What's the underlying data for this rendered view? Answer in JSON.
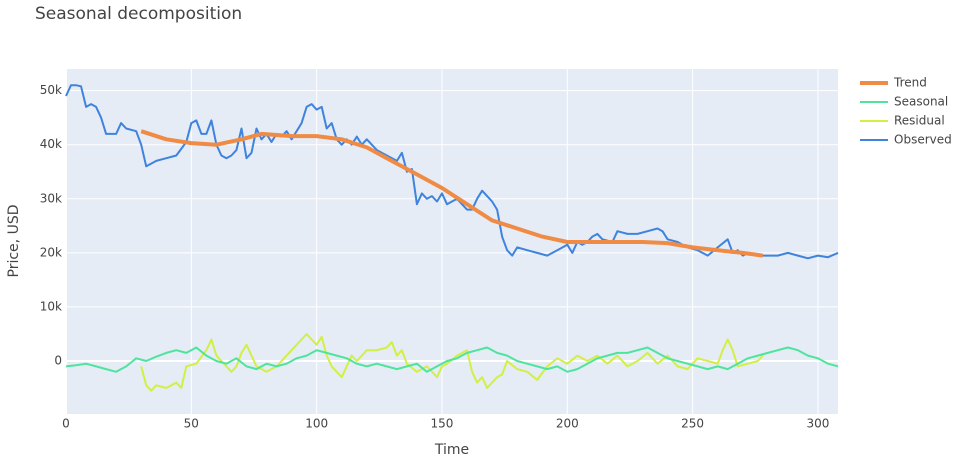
{
  "chart_data": {
    "type": "line",
    "title": "Seasonal decomposition",
    "x_label": "Time",
    "y_label": "Price, USD",
    "xlim": [
      0,
      308
    ],
    "ylim": [
      -9800,
      54000
    ],
    "xticks": [
      0,
      50,
      100,
      150,
      200,
      250,
      300
    ],
    "yticks": [
      {
        "value": 0,
        "label": "0"
      },
      {
        "value": 10000,
        "label": "10k"
      },
      {
        "value": 20000,
        "label": "20k"
      },
      {
        "value": 30000,
        "label": "30k"
      },
      {
        "value": 40000,
        "label": "40k"
      },
      {
        "value": 50000,
        "label": "50k"
      }
    ],
    "grid": true,
    "legend": "right",
    "series": [
      {
        "name": "Trend",
        "color": "#ef8b44",
        "x": [
          30,
          40,
          50,
          60,
          70,
          78,
          90,
          100,
          110,
          120,
          130,
          140,
          150,
          160,
          170,
          180,
          190,
          200,
          210,
          220,
          230,
          240,
          250,
          260,
          270,
          278
        ],
        "values": [
          42500,
          41000,
          40300,
          40000,
          41000,
          42000,
          41600,
          41600,
          41000,
          39500,
          37000,
          34500,
          32000,
          29000,
          26000,
          24500,
          23000,
          22000,
          22000,
          22000,
          22000,
          21800,
          21000,
          20500,
          20000,
          19500
        ]
      },
      {
        "name": "Seasonal",
        "color": "#4fe49c",
        "x": [
          0,
          4,
          8,
          12,
          16,
          20,
          24,
          28,
          32,
          36,
          40,
          44,
          48,
          52,
          56,
          60,
          64,
          68,
          72,
          76,
          80,
          84,
          88,
          92,
          96,
          100,
          104,
          108,
          112,
          116,
          120,
          124,
          128,
          132,
          136,
          140,
          144,
          148,
          152,
          156,
          160,
          164,
          168,
          172,
          176,
          180,
          184,
          188,
          192,
          196,
          200,
          204,
          208,
          212,
          216,
          220,
          224,
          228,
          232,
          236,
          240,
          244,
          248,
          252,
          256,
          260,
          264,
          268,
          272,
          276,
          280,
          284,
          288,
          292,
          296,
          300,
          304,
          308
        ],
        "values": [
          -1000,
          -800,
          -500,
          -1000,
          -1500,
          -2000,
          -1000,
          500,
          0,
          800,
          1500,
          2000,
          1500,
          2500,
          1000,
          0,
          -500,
          500,
          -1000,
          -1500,
          -500,
          -1000,
          -500,
          500,
          1000,
          2000,
          1500,
          1000,
          500,
          -500,
          -1000,
          -500,
          -1000,
          -1500,
          -1000,
          -500,
          -2000,
          -1000,
          0,
          500,
          1500,
          2000,
          2500,
          1500,
          1000,
          0,
          -500,
          -1000,
          -1500,
          -1000,
          -2000,
          -1500,
          -500,
          500,
          1000,
          1500,
          1500,
          2000,
          2500,
          1500,
          500,
          0,
          -500,
          -1000,
          -1500,
          -1000,
          -1500,
          -500,
          500,
          1000,
          1500,
          2000,
          2500,
          2000,
          1000,
          500,
          -500,
          -1000
        ]
      },
      {
        "name": "Residual",
        "color": "#d2ef45",
        "x": [
          30,
          32,
          34,
          36,
          40,
          44,
          46,
          48,
          52,
          56,
          58,
          60,
          62,
          64,
          66,
          68,
          70,
          72,
          74,
          76,
          80,
          84,
          88,
          92,
          96,
          98,
          100,
          102,
          104,
          106,
          108,
          110,
          112,
          114,
          116,
          120,
          124,
          128,
          130,
          132,
          134,
          136,
          140,
          144,
          148,
          150,
          152,
          156,
          160,
          162,
          164,
          166,
          168,
          170,
          172,
          174,
          176,
          180,
          184,
          188,
          192,
          196,
          200,
          204,
          208,
          212,
          216,
          220,
          224,
          228,
          232,
          236,
          240,
          244,
          248,
          252,
          256,
          260,
          262,
          264,
          266,
          268,
          272,
          276,
          278
        ],
        "values": [
          -1000,
          -4500,
          -5500,
          -4500,
          -5000,
          -4000,
          -5000,
          -1000,
          -500,
          2000,
          4000,
          1000,
          0,
          -1000,
          -2000,
          -1000,
          1500,
          3000,
          1000,
          -1000,
          -2000,
          -1000,
          1000,
          3000,
          5000,
          4000,
          3000,
          4500,
          1000,
          -1000,
          -2000,
          -3000,
          -1000,
          1000,
          0,
          2000,
          2000,
          2500,
          3500,
          1000,
          2000,
          -500,
          -2000,
          -1000,
          -3000,
          -1000,
          -500,
          1000,
          2000,
          -2000,
          -4000,
          -3000,
          -5000,
          -4000,
          -3000,
          -2500,
          0,
          -1500,
          -2000,
          -3500,
          -1000,
          500,
          -500,
          1000,
          0,
          1000,
          -500,
          1000,
          -1000,
          0,
          1500,
          -500,
          1000,
          -1000,
          -1500,
          500,
          0,
          -500,
          2000,
          4000,
          2000,
          -1000,
          -500,
          0,
          1000
        ]
      },
      {
        "name": "Observed",
        "color": "#3f83dd",
        "x": [
          0,
          2,
          4,
          6,
          8,
          10,
          12,
          14,
          16,
          20,
          22,
          24,
          28,
          30,
          32,
          34,
          36,
          40,
          44,
          48,
          50,
          52,
          54,
          56,
          58,
          60,
          62,
          64,
          66,
          68,
          70,
          72,
          74,
          76,
          78,
          80,
          82,
          84,
          86,
          88,
          90,
          94,
          96,
          98,
          100,
          102,
          104,
          106,
          108,
          110,
          112,
          114,
          116,
          118,
          120,
          124,
          128,
          132,
          134,
          136,
          138,
          140,
          142,
          144,
          146,
          148,
          150,
          152,
          154,
          156,
          158,
          160,
          162,
          164,
          166,
          168,
          170,
          172,
          174,
          176,
          178,
          180,
          184,
          188,
          192,
          196,
          200,
          202,
          204,
          206,
          208,
          210,
          212,
          214,
          218,
          220,
          224,
          228,
          232,
          236,
          238,
          240,
          244,
          248,
          252,
          256,
          260,
          264,
          266,
          268,
          270,
          272,
          276,
          280,
          284,
          288,
          292,
          296,
          300,
          304,
          308
        ],
        "values": [
          49000,
          51000,
          51000,
          50800,
          47000,
          47500,
          47000,
          45000,
          42000,
          42000,
          44000,
          43000,
          42500,
          40000,
          36000,
          36500,
          37000,
          37500,
          38000,
          40500,
          44000,
          44500,
          42000,
          42000,
          44500,
          40000,
          38000,
          37500,
          38000,
          39000,
          43000,
          37500,
          38500,
          43000,
          41000,
          42000,
          40500,
          42000,
          41500,
          42500,
          41000,
          44000,
          47000,
          47500,
          46500,
          47000,
          43000,
          44000,
          41000,
          40000,
          41000,
          40000,
          41500,
          40000,
          41000,
          39000,
          38000,
          37000,
          38500,
          35000,
          35500,
          29000,
          31000,
          30000,
          30500,
          29500,
          31000,
          29000,
          29500,
          30000,
          29000,
          28000,
          28000,
          30000,
          31500,
          30500,
          29500,
          28000,
          23000,
          20500,
          19500,
          21000,
          20500,
          20000,
          19500,
          20500,
          21500,
          20000,
          22000,
          21500,
          22000,
          23000,
          23500,
          22500,
          22000,
          24000,
          23500,
          23500,
          24000,
          24500,
          24000,
          22500,
          22000,
          21000,
          20500,
          19500,
          21000,
          22500,
          20000,
          20500,
          19500,
          20000,
          19500,
          19500,
          19500,
          20000,
          19500,
          19000,
          19500,
          19200,
          20000
        ]
      }
    ]
  }
}
